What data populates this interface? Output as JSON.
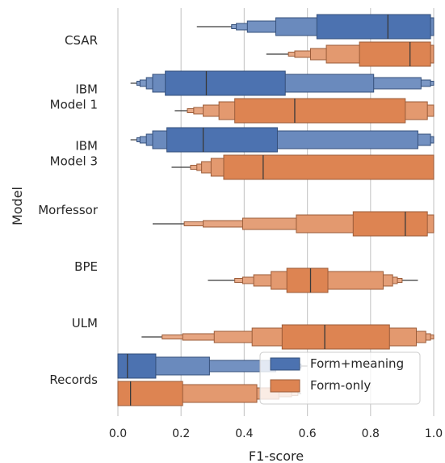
{
  "chart_data": {
    "type": "letter-value boxen (horizontal)",
    "xlabel": "F1-score",
    "ylabel": "Model",
    "xlim": [
      0,
      1
    ],
    "xticks": [
      "0.0",
      "0.2",
      "0.4",
      "0.6",
      "0.8",
      "1.0"
    ],
    "grid": "vertical",
    "legend_position": "bottom-right",
    "categories": [
      {
        "label": [
          "CSAR"
        ]
      },
      {
        "label": [
          "IBM",
          "Model 1"
        ]
      },
      {
        "label": [
          "IBM",
          "Model 3"
        ]
      },
      {
        "label": [
          "Morfessor"
        ]
      },
      {
        "label": [
          "BPE"
        ]
      },
      {
        "label": [
          "ULM"
        ]
      },
      {
        "label": [
          "Records"
        ]
      }
    ],
    "series": [
      {
        "name": "Form+meaning",
        "color": "#4c72b0",
        "data": [
          {
            "category": 0,
            "median": 0.855,
            "boxes": [
              [
                0.63,
                0.99
              ],
              [
                0.5,
                1.0
              ],
              [
                0.41,
                1.0
              ],
              [
                0.375,
                1.0
              ],
              [
                0.36,
                1.0
              ]
            ],
            "whisker": [
              0.25,
              0.36
            ]
          },
          {
            "category": 1,
            "median": 0.28,
            "boxes": [
              [
                0.15,
                0.53
              ],
              [
                0.11,
                0.81
              ],
              [
                0.09,
                0.96
              ],
              [
                0.07,
                0.99
              ],
              [
                0.06,
                1.0
              ]
            ],
            "whisker": [
              0.04,
              0.06
            ]
          },
          {
            "category": 2,
            "median": 0.27,
            "boxes": [
              [
                0.155,
                0.505
              ],
              [
                0.11,
                0.95
              ],
              [
                0.09,
                0.99
              ],
              [
                0.07,
                1.0
              ],
              [
                0.06,
                1.0
              ]
            ],
            "whisker": [
              0.04,
              0.06
            ]
          },
          {
            "category": 6,
            "median": 0.03,
            "boxes": [
              [
                0.0,
                0.12
              ],
              [
                0.0,
                0.29
              ],
              [
                0.0,
                0.5
              ],
              [
                0.0,
                0.56
              ],
              [
                0.0,
                0.58
              ]
            ],
            "whisker": [
              0.58,
              0.6
            ]
          }
        ]
      },
      {
        "name": "Form-only",
        "color": "#dd8452",
        "data": [
          {
            "category": 0,
            "median": 0.925,
            "boxes": [
              [
                0.765,
                0.99
              ],
              [
                0.66,
                1.0
              ],
              [
                0.61,
                1.0
              ],
              [
                0.56,
                1.0
              ],
              [
                0.54,
                1.0
              ]
            ],
            "whisker": [
              0.47,
              0.54
            ]
          },
          {
            "category": 1,
            "median": 0.56,
            "boxes": [
              [
                0.37,
                0.91
              ],
              [
                0.32,
                0.98
              ],
              [
                0.27,
                1.0
              ],
              [
                0.24,
                1.0
              ],
              [
                0.22,
                1.0
              ]
            ],
            "whisker": [
              0.18,
              0.22
            ]
          },
          {
            "category": 2,
            "median": 0.46,
            "boxes": [
              [
                0.335,
                1.0
              ],
              [
                0.295,
                1.0
              ],
              [
                0.265,
                1.0
              ],
              [
                0.25,
                1.0
              ],
              [
                0.23,
                1.0
              ]
            ],
            "whisker": [
              0.17,
              0.23
            ]
          },
          {
            "category": 3,
            "median": 0.91,
            "boxes": [
              [
                0.745,
                0.98
              ],
              [
                0.565,
                1.0
              ],
              [
                0.395,
                1.0
              ],
              [
                0.27,
                1.0
              ],
              [
                0.21,
                1.0
              ]
            ],
            "whisker": [
              0.11,
              0.21
            ]
          },
          {
            "category": 4,
            "median": 0.61,
            "boxes": [
              [
                0.535,
                0.665
              ],
              [
                0.485,
                0.84
              ],
              [
                0.43,
                0.87
              ],
              [
                0.395,
                0.885
              ],
              [
                0.37,
                0.9
              ]
            ],
            "whisker": [
              0.285,
              0.95
            ]
          },
          {
            "category": 5,
            "median": 0.655,
            "boxes": [
              [
                0.52,
                0.86
              ],
              [
                0.425,
                0.945
              ],
              [
                0.305,
                0.975
              ],
              [
                0.205,
                0.99
              ],
              [
                0.14,
                1.0
              ]
            ],
            "whisker": [
              0.075,
              0.14
            ]
          },
          {
            "category": 6,
            "median": 0.04,
            "boxes": [
              [
                0.0,
                0.205
              ],
              [
                0.0,
                0.44
              ],
              [
                0.0,
                0.51
              ],
              [
                0.0,
                0.55
              ],
              [
                0.0,
                0.57
              ]
            ],
            "whisker": [
              0.57,
              0.58
            ]
          }
        ]
      }
    ]
  }
}
